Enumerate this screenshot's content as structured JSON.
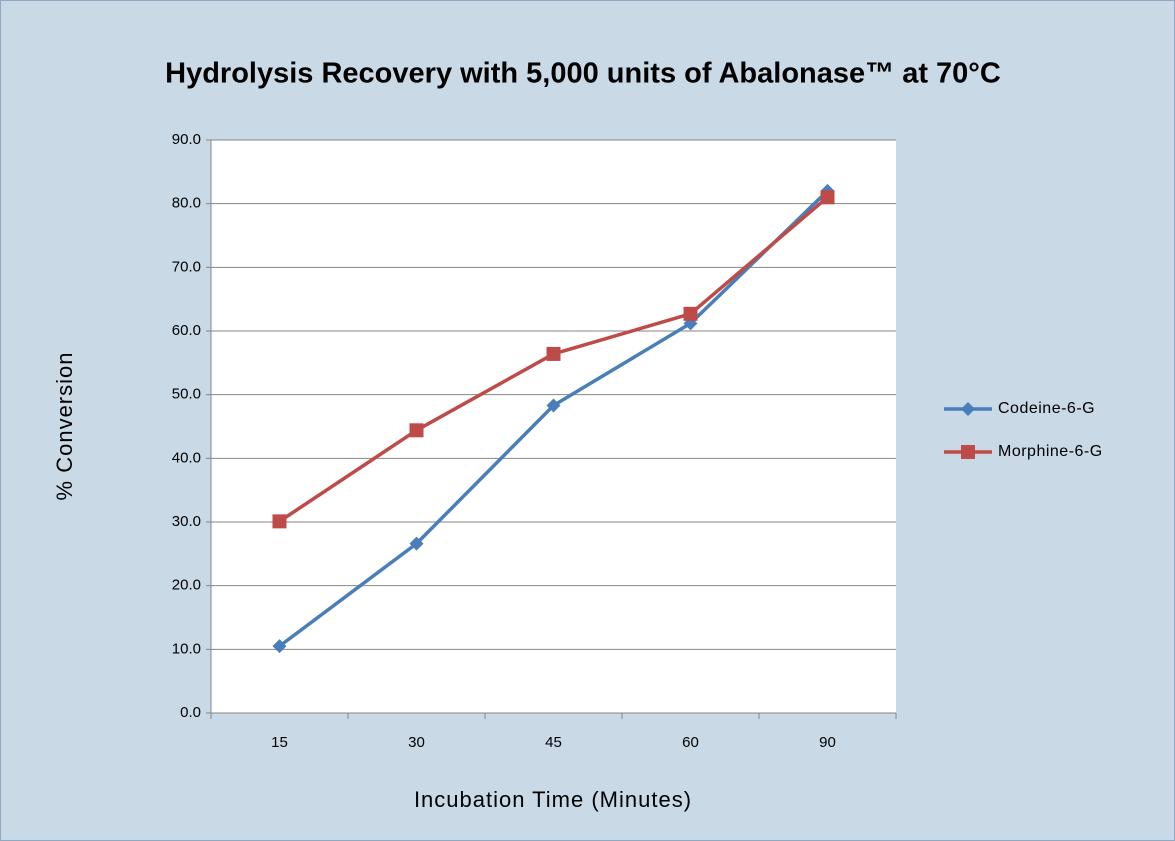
{
  "chart_data": {
    "type": "line",
    "title": "Hydrolysis Recovery with 5,000 units of Abalonase™ at 70°C",
    "x_label": "Incubation Time (Minutes)",
    "y_label": "% Conversion",
    "categories": [
      "15",
      "30",
      "45",
      "60",
      "90"
    ],
    "series": [
      {
        "name": "Codeine-6-G",
        "color": "#4a7ebb",
        "marker": "diamond",
        "values": [
          10.5,
          26.6,
          48.3,
          61.2,
          82.0
        ]
      },
      {
        "name": "Morphine-6-G",
        "color": "#be4b48",
        "marker": "square",
        "values": [
          30.1,
          44.4,
          56.4,
          62.7,
          81.0
        ]
      }
    ],
    "ylim": [
      0,
      90
    ],
    "yticks": [
      {
        "value": 0,
        "label": "0.0"
      },
      {
        "value": 10,
        "label": "10.0"
      },
      {
        "value": 20,
        "label": "20.0"
      },
      {
        "value": 30,
        "label": "30.0"
      },
      {
        "value": 40,
        "label": "40.0"
      },
      {
        "value": 50,
        "label": "50.0"
      },
      {
        "value": 60,
        "label": "60.0"
      },
      {
        "value": 70,
        "label": "70.0"
      },
      {
        "value": 80,
        "label": "80.0"
      },
      {
        "value": 90,
        "label": "90.0"
      }
    ],
    "grid": true,
    "legend": "right"
  }
}
